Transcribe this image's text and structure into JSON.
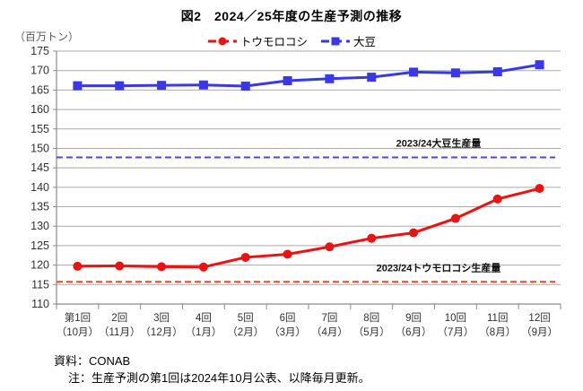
{
  "chart_data": {
    "type": "line",
    "title": "図2　2024／25年度の生産予測の推移",
    "unit_label": "（百万トン）",
    "ylim": [
      110,
      175
    ],
    "ytick_step": 5,
    "grid": true,
    "legend_position": "top-center",
    "categories_round": [
      "第1回",
      "2回",
      "3回",
      "4回",
      "5回",
      "6回",
      "7回",
      "8回",
      "9回",
      "10回",
      "11回",
      "12回"
    ],
    "categories_month": [
      "（10月）",
      "（11月）",
      "（12月）",
      "（1月）",
      "（2月）",
      "（3月）",
      "（4月）",
      "（5月）",
      "（6月）",
      "（7月）",
      "（8月）",
      "（9月）"
    ],
    "series": [
      {
        "name": "トウモロコシ",
        "color": "#ed1111",
        "marker": "circle",
        "values": [
          119.7,
          119.8,
          119.6,
          119.5,
          122.0,
          122.8,
          124.7,
          126.9,
          128.3,
          132.0,
          137.0,
          139.7
        ]
      },
      {
        "name": "大豆",
        "color": "#3838e8",
        "marker": "square",
        "values": [
          166.1,
          166.1,
          166.2,
          166.3,
          166.0,
          167.4,
          167.9,
          168.3,
          169.6,
          169.4,
          169.7,
          171.5
        ]
      }
    ],
    "reference_lines": [
      {
        "label": "2023/24大豆生産量",
        "value": 147.7,
        "color": "#4545ff"
      },
      {
        "label": "2023/24トウモロコシ生産量",
        "value": 115.7,
        "color": "#ff4422"
      }
    ],
    "colors": {
      "gridline": "#a9a9a9",
      "axis": "#8a8a8a",
      "tick_text": "#303030"
    }
  },
  "footer": {
    "source": "資料：CONAB",
    "note": "注：生産予測の第1回は2024年10月公表、以降毎月更新。"
  }
}
